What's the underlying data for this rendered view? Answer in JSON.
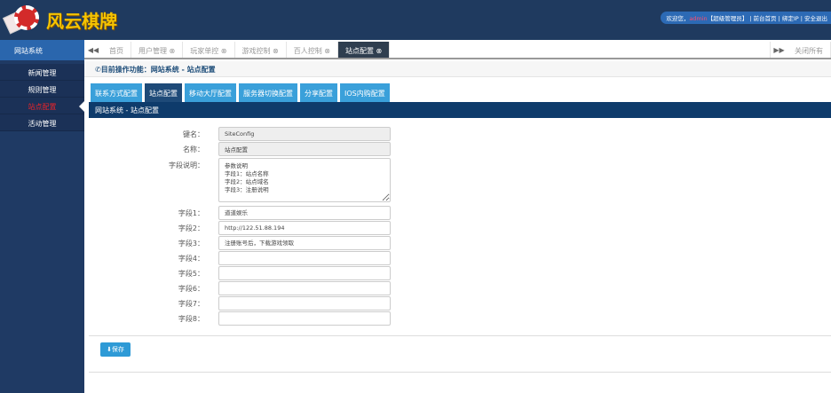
{
  "header": {
    "logo_text": "风云棋牌",
    "welcome_prefix": "欢迎您，",
    "username": "admin",
    "role": "【超级管理员】",
    "links": " | 前台首页 | 绑定IP | 安全退出"
  },
  "sidebar": {
    "title": "网站系统",
    "items": [
      {
        "label": "新闻管理"
      },
      {
        "label": "规则管理"
      },
      {
        "label": "站点配置",
        "active": true
      },
      {
        "label": "活动管理"
      }
    ]
  },
  "tabs": [
    {
      "label": "首页"
    },
    {
      "label": "用户管理 ⊗"
    },
    {
      "label": "玩家单控 ⊗"
    },
    {
      "label": "游戏控制 ⊗"
    },
    {
      "label": "百人控制 ⊗"
    },
    {
      "label": "站点配置 ⊗",
      "active": true
    }
  ],
  "tabbar": {
    "prev": "◀◀",
    "next": "▶▶",
    "close_all": "关闭所有"
  },
  "breadcrumb": "✆目前操作功能：网站系统 - 站点配置",
  "subtabs": [
    {
      "label": "联系方式配置"
    },
    {
      "label": "站点配置",
      "active": true
    },
    {
      "label": "移动大厅配置"
    },
    {
      "label": "服务器切换配置"
    },
    {
      "label": "分享配置"
    },
    {
      "label": "IOS内购配置"
    }
  ],
  "section_title": "网站系统 - 站点配置",
  "form": {
    "key": {
      "label": "键名：",
      "value": "SiteConfig"
    },
    "name": {
      "label": "名称：",
      "value": "站点配置"
    },
    "desc": {
      "label": "字段说明：",
      "value": "参数说明\n字段1：站点名称\n字段2：站点域名\n字段3：注册说明"
    },
    "fields": [
      {
        "label": "字段1：",
        "value": "道道娱乐"
      },
      {
        "label": "字段2：",
        "value": "http://122.51.88.194"
      },
      {
        "label": "字段3：",
        "value": "注册账号后，下载游戏领取"
      },
      {
        "label": "字段4：",
        "value": ""
      },
      {
        "label": "字段5：",
        "value": ""
      },
      {
        "label": "字段6：",
        "value": ""
      },
      {
        "label": "字段7：",
        "value": ""
      },
      {
        "label": "字段8：",
        "value": ""
      }
    ]
  },
  "save_label": "⬇保存"
}
